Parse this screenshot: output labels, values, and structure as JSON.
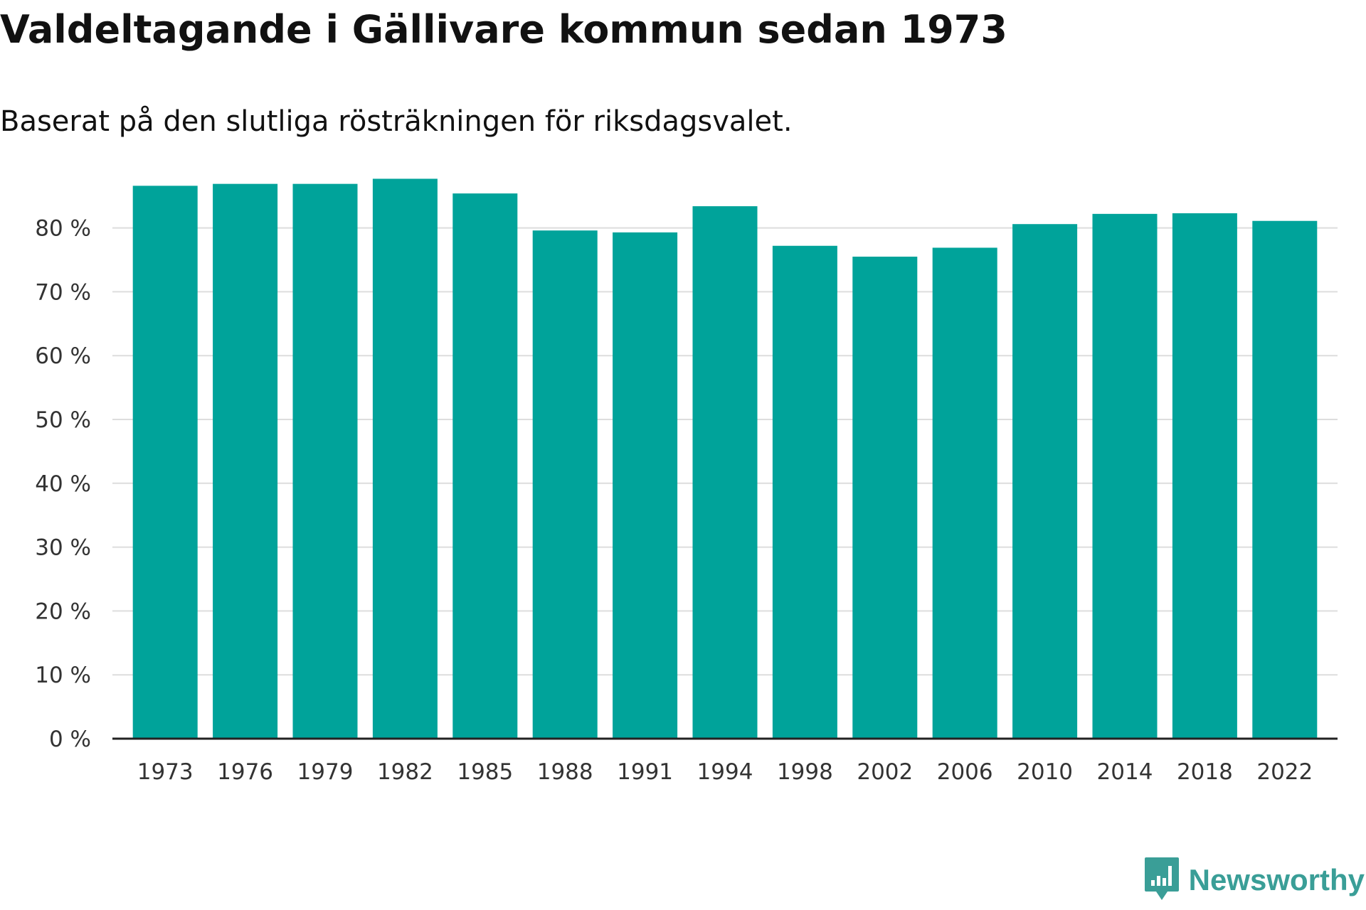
{
  "chart_data": {
    "type": "bar",
    "title": "Valdeltagande i Gällivare kommun sedan 1973",
    "subtitle": "Baserat på den slutliga rösträkningen för riksdagsvalet.",
    "xlabel": "",
    "ylabel": "",
    "ylim": [
      0,
      90
    ],
    "yticks": [
      0,
      10,
      20,
      30,
      40,
      50,
      60,
      70,
      80
    ],
    "ytick_labels": [
      "0 %",
      "10 %",
      "20 %",
      "30 %",
      "40 %",
      "50 %",
      "60 %",
      "70 %",
      "80 %"
    ],
    "categories": [
      "1973",
      "1976",
      "1979",
      "1982",
      "1985",
      "1988",
      "1991",
      "1994",
      "1998",
      "2002",
      "2006",
      "2010",
      "2014",
      "2018",
      "2022"
    ],
    "values": [
      86.6,
      86.9,
      86.9,
      87.7,
      85.4,
      79.6,
      79.3,
      83.4,
      77.2,
      75.5,
      76.9,
      80.6,
      82.2,
      82.3,
      81.1
    ],
    "grid": true,
    "bar_color": "#00a39a"
  },
  "brand": {
    "name": "Newsworthy",
    "icon": "newsworthy-logo-icon",
    "color": "#3a9e97"
  }
}
